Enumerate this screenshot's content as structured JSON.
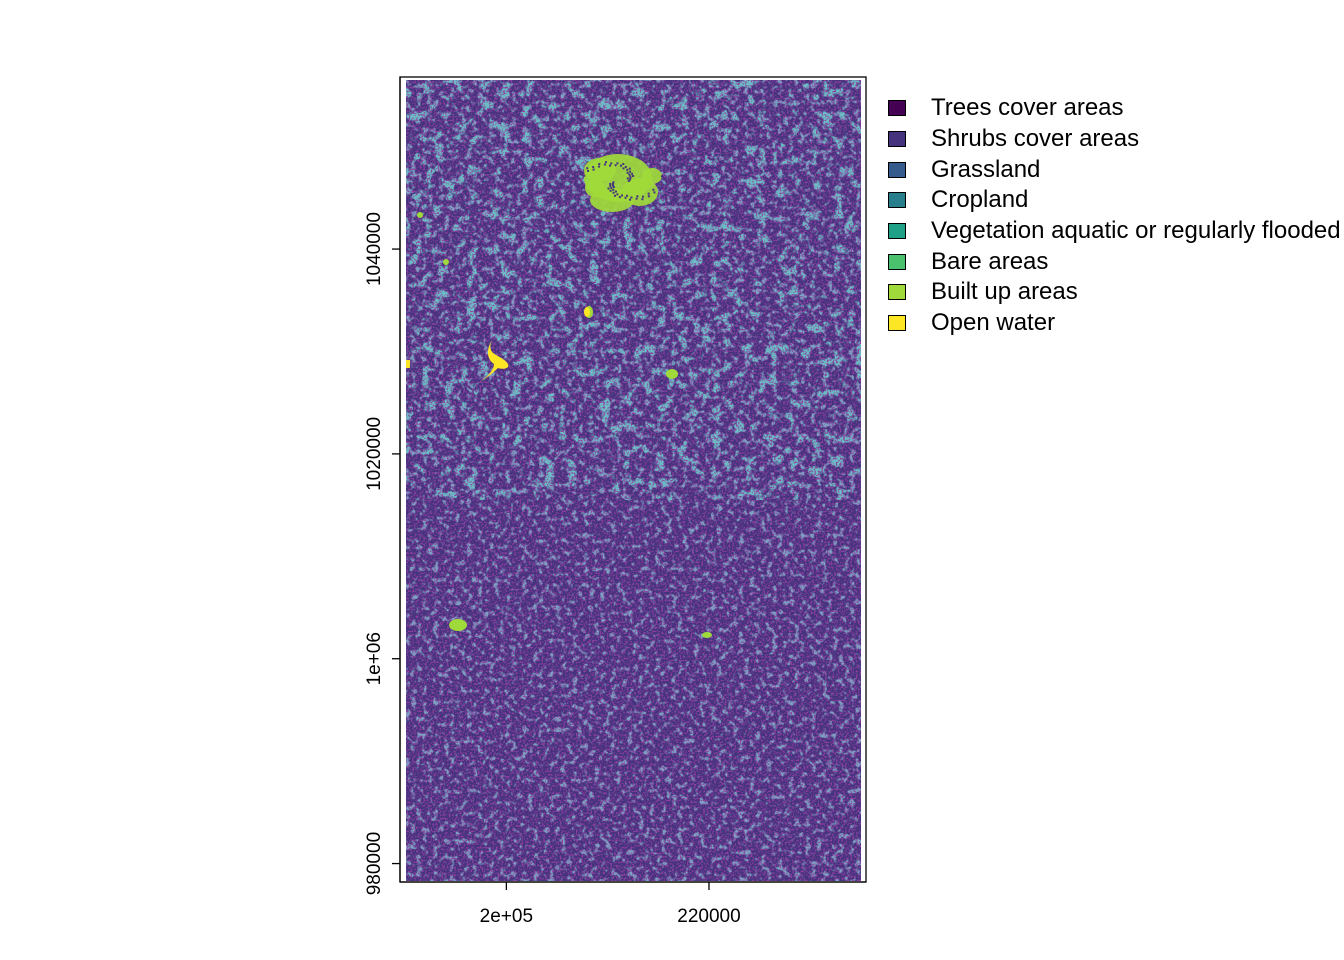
{
  "map": {
    "x_axis": {
      "tick_labels": [
        "2e+05",
        "220000"
      ],
      "tick_values": [
        200000,
        220000
      ]
    },
    "y_axis": {
      "tick_labels": [
        "980000",
        "1e+06",
        "1020000",
        "1040000"
      ],
      "tick_values": [
        980000,
        1000000,
        1020000,
        1040000
      ]
    },
    "extent": {
      "x": [
        189500,
        235500
      ],
      "y": [
        978200,
        1056800
      ]
    }
  },
  "legend": {
    "items": [
      {
        "label": "Trees cover areas",
        "color": "#440154"
      },
      {
        "label": "Shrubs cover areas",
        "color": "#46337E"
      },
      {
        "label": "Grassland",
        "color": "#365C8D"
      },
      {
        "label": "Cropland",
        "color": "#277F8E"
      },
      {
        "label": "Vegetation aquatic or regularly flooded",
        "color": "#1FA187"
      },
      {
        "label": "Bare areas",
        "color": "#4AC16D"
      },
      {
        "label": "Built up areas",
        "color": "#9FDA3A"
      },
      {
        "label": "Open water",
        "color": "#FDE725"
      }
    ]
  }
}
